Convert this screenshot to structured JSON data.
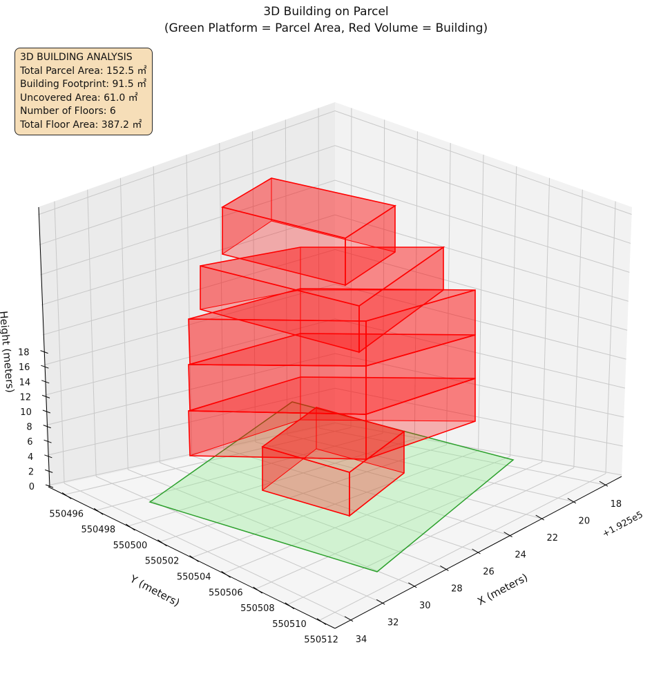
{
  "chart_data": {
    "type": "3d-bar",
    "title": "3D Building on Parcel",
    "subtitle": "(Green Platform = Parcel Area, Red Volume = Building)",
    "xlabel": "X (meters)",
    "ylabel": "Y (meters)",
    "zlabel": "Height (meters)",
    "x_offset_label": "+1.925e5",
    "x_ticks": [
      "18",
      "20",
      "22",
      "24",
      "26",
      "28",
      "30",
      "32",
      "34"
    ],
    "y_ticks": [
      "550496",
      "550498",
      "550500",
      "550502",
      "550504",
      "550506",
      "550508",
      "550510",
      "550512"
    ],
    "z_ticks": [
      "0",
      "2",
      "4",
      "6",
      "8",
      "10",
      "12",
      "14",
      "16",
      "18"
    ],
    "zlim": [
      0,
      18
    ],
    "parcel_color": "#2ca02c",
    "building_color": "#ff0000",
    "floors": 6,
    "info": {
      "heading": "3D BUILDING ANALYSIS",
      "lines": [
        "Total Parcel Area: 152.5 ㎡",
        "Building Footprint: 91.5 ㎡",
        "Uncovered Area: 61.0 ㎡",
        "Number of Floors: 6",
        "Total Floor Area: 387.2 ㎡"
      ]
    }
  }
}
